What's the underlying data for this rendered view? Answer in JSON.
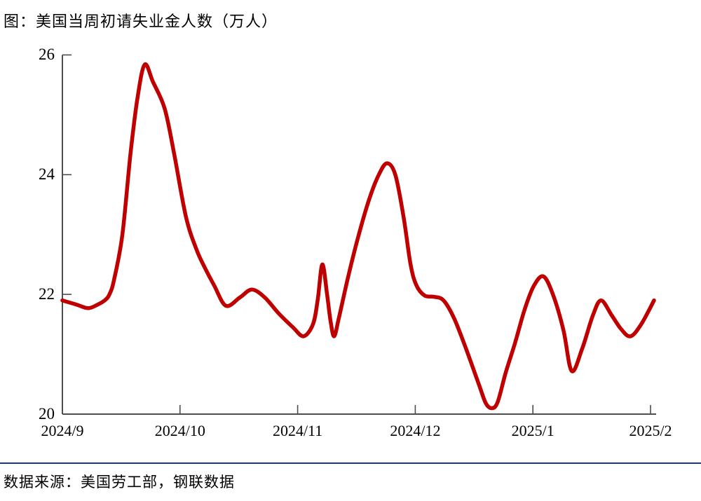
{
  "header": {
    "title": "图：美国当周初请失业金人数（万人）"
  },
  "footer": {
    "source": "数据来源：美国劳工部，钢联数据",
    "divider_color": "#1F3864"
  },
  "chart_data": {
    "type": "line",
    "title": "美国当周初请失业金人数（万人）",
    "unit": "万人",
    "grid": false,
    "legend": "none",
    "line_color": "#C00000",
    "axis_color": "#4d4d4d",
    "x_axis": {
      "tick_labels": [
        "2024/9",
        "2024/10",
        "2024/11",
        "2024/12",
        "2025/1",
        "2025/2"
      ],
      "range_months": [
        0,
        5.05
      ]
    },
    "y_axis": {
      "ticks": [
        26,
        24,
        22,
        20
      ],
      "range": [
        20,
        26
      ]
    },
    "series": [
      {
        "name": "美国当周初请失业金人数",
        "color": "#C00000",
        "points_note": "x = months after 2024/9 tick, y = 万人 (read off curve)",
        "points": [
          [
            0.0,
            21.9
          ],
          [
            0.12,
            21.83
          ],
          [
            0.22,
            21.77
          ],
          [
            0.3,
            21.83
          ],
          [
            0.36,
            21.9
          ],
          [
            0.4,
            22.0
          ],
          [
            0.44,
            22.25
          ],
          [
            0.51,
            23.0
          ],
          [
            0.58,
            24.37
          ],
          [
            0.64,
            25.3
          ],
          [
            0.7,
            25.84
          ],
          [
            0.77,
            25.55
          ],
          [
            0.87,
            25.1
          ],
          [
            0.95,
            24.35
          ],
          [
            1.05,
            23.3
          ],
          [
            1.14,
            22.75
          ],
          [
            1.21,
            22.45
          ],
          [
            1.29,
            22.15
          ],
          [
            1.39,
            21.81
          ],
          [
            1.51,
            21.95
          ],
          [
            1.61,
            22.08
          ],
          [
            1.72,
            21.95
          ],
          [
            1.84,
            21.68
          ],
          [
            1.96,
            21.45
          ],
          [
            2.05,
            21.3
          ],
          [
            2.13,
            21.5
          ],
          [
            2.17,
            21.9
          ],
          [
            2.21,
            22.5
          ],
          [
            2.25,
            22.0
          ],
          [
            2.28,
            21.55
          ],
          [
            2.31,
            21.3
          ],
          [
            2.35,
            21.6
          ],
          [
            2.43,
            22.3
          ],
          [
            2.52,
            23.0
          ],
          [
            2.61,
            23.6
          ],
          [
            2.69,
            24.0
          ],
          [
            2.76,
            24.19
          ],
          [
            2.83,
            24.0
          ],
          [
            2.9,
            23.3
          ],
          [
            2.96,
            22.5
          ],
          [
            3.01,
            22.15
          ],
          [
            3.08,
            21.98
          ],
          [
            3.16,
            21.96
          ],
          [
            3.24,
            21.9
          ],
          [
            3.33,
            21.6
          ],
          [
            3.43,
            21.1
          ],
          [
            3.54,
            20.5
          ],
          [
            3.6,
            20.18
          ],
          [
            3.65,
            20.1
          ],
          [
            3.7,
            20.2
          ],
          [
            3.77,
            20.7
          ],
          [
            3.85,
            21.2
          ],
          [
            3.93,
            21.75
          ],
          [
            4.01,
            22.15
          ],
          [
            4.09,
            22.3
          ],
          [
            4.17,
            22.0
          ],
          [
            4.26,
            21.4
          ],
          [
            4.33,
            20.72
          ],
          [
            4.42,
            21.1
          ],
          [
            4.51,
            21.65
          ],
          [
            4.58,
            21.9
          ],
          [
            4.67,
            21.65
          ],
          [
            4.75,
            21.42
          ],
          [
            4.83,
            21.3
          ],
          [
            4.92,
            21.5
          ],
          [
            5.03,
            21.9
          ]
        ]
      }
    ]
  }
}
